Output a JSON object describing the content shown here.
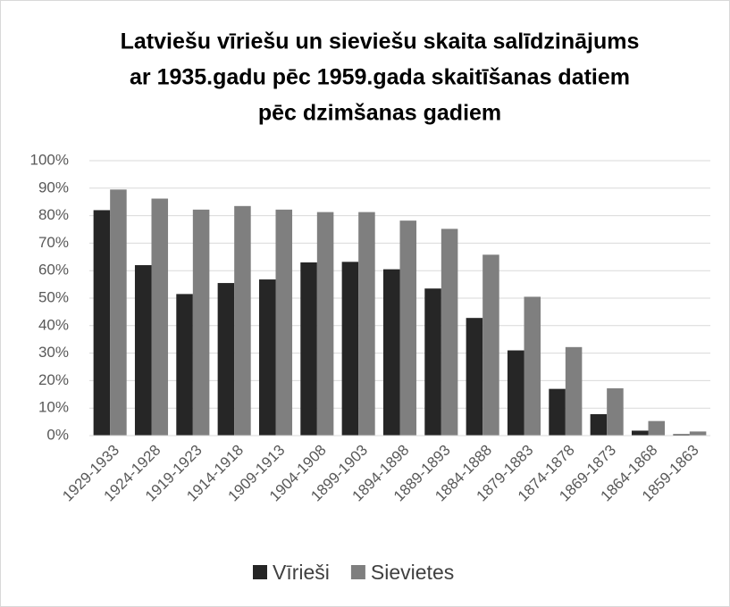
{
  "chart_data": {
    "type": "bar",
    "title": [
      "Latviešu vīriešu un sieviešu skaita salīdzinājums",
      "ar 1935.gadu pēc 1959.gada skaitīšanas datiem",
      "pēc dzimšanas gadiem"
    ],
    "categories": [
      "1929-1933",
      "1924-1928",
      "1919-1923",
      "1914-1918",
      "1909-1913",
      "1904-1908",
      "1899-1903",
      "1894-1898",
      "1889-1893",
      "1884-1888",
      "1879-1883",
      "1874-1878",
      "1869-1873",
      "1864-1868",
      "1859-1863"
    ],
    "series": [
      {
        "name": "Vīrieši",
        "color": "#262626",
        "values": [
          82,
          62,
          51.5,
          55.5,
          56.8,
          63,
          63.2,
          60.5,
          53.5,
          42.8,
          31,
          17,
          7.8,
          1.8,
          0.5
        ]
      },
      {
        "name": "Sievietes",
        "color": "#7f7f7f",
        "values": [
          89.5,
          86.2,
          82.2,
          83.5,
          82.2,
          81.3,
          81.3,
          78.2,
          75.2,
          65.8,
          50.5,
          32.2,
          17.2,
          5.3,
          1.5
        ]
      }
    ],
    "ylim": [
      0,
      100
    ],
    "yticks": [
      {
        "value": 0,
        "label": "0%"
      },
      {
        "value": 10,
        "label": "10%"
      },
      {
        "value": 20,
        "label": "20%"
      },
      {
        "value": 30,
        "label": "30%"
      },
      {
        "value": 40,
        "label": "40%"
      },
      {
        "value": 50,
        "label": "50%"
      },
      {
        "value": 60,
        "label": "60%"
      },
      {
        "value": 70,
        "label": "70%"
      },
      {
        "value": 80,
        "label": "80%"
      },
      {
        "value": 90,
        "label": "90%"
      },
      {
        "value": 100,
        "label": "100%"
      }
    ],
    "grid": true,
    "legend": "bottom"
  }
}
